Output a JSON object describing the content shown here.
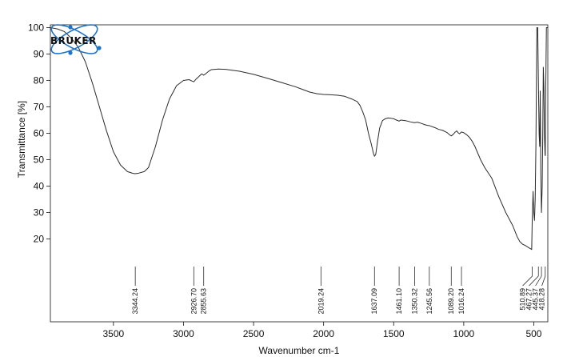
{
  "chart_data": {
    "type": "line",
    "xlabel": "Wavenumber cm-1",
    "ylabel": "Transmittance [%]",
    "xlim": [
      3950,
      400
    ],
    "ylim": [
      0,
      100
    ],
    "x_reversed": true,
    "x_ticks": [
      3500,
      3000,
      2500,
      2000,
      1500,
      1000,
      500
    ],
    "y_ticks": [
      20,
      30,
      40,
      50,
      60,
      70,
      80,
      90,
      100
    ],
    "grid": false,
    "logo": "BRUKER",
    "colors": {
      "line": "#2b2b2b",
      "logo_accent": "#1e73c8",
      "axis": "#111111"
    },
    "series": [
      {
        "x": [
          3950,
          3900,
          3850,
          3800,
          3750,
          3700,
          3650,
          3600,
          3550,
          3500,
          3450,
          3400,
          3360,
          3344.24,
          3320,
          3280,
          3250,
          3200,
          3150,
          3100,
          3050,
          3000,
          2960,
          2940,
          2926.7,
          2910,
          2880,
          2870,
          2855.63,
          2840,
          2820,
          2800,
          2750,
          2700,
          2600,
          2500,
          2400,
          2300,
          2200,
          2150,
          2100,
          2050,
          2019.24,
          2000,
          1950,
          1900,
          1850,
          1800,
          1760,
          1740,
          1720,
          1700,
          1680,
          1660,
          1645,
          1637.09,
          1628,
          1615,
          1600,
          1580,
          1560,
          1540,
          1520,
          1500,
          1480,
          1461.1,
          1450,
          1420,
          1400,
          1380,
          1360,
          1350.32,
          1330,
          1300,
          1280,
          1260,
          1245.56,
          1230,
          1200,
          1180,
          1150,
          1120,
          1100,
          1089.2,
          1075,
          1060,
          1050,
          1040,
          1030,
          1016.24,
          1000,
          980,
          960,
          940,
          920,
          900,
          880,
          850,
          800,
          750,
          700,
          650,
          620,
          600,
          580,
          560,
          545,
          530,
          520,
          515,
          510.89,
          505,
          500,
          495,
          490,
          485,
          478,
          472,
          467.27,
          462,
          458,
          454,
          450,
          445.37,
          440,
          436,
          432,
          428,
          424,
          420,
          418.28,
          415,
          410,
          405,
          400
        ],
        "y": [
          100,
          99.5,
          98.5,
          96,
          92.5,
          87,
          79,
          70,
          61,
          53,
          48,
          45.5,
          44.8,
          44.7,
          44.9,
          45.5,
          47,
          55,
          65,
          73,
          78,
          80,
          80.3,
          79.8,
          79.5,
          80.5,
          82,
          82.5,
          82,
          82.6,
          83.5,
          84.1,
          84.3,
          84.2,
          83.5,
          82.3,
          80.8,
          79.2,
          77.6,
          76.6,
          75.6,
          75,
          74.8,
          74.7,
          74.6,
          74.4,
          74,
          73,
          72,
          70.5,
          68,
          65,
          60,
          56,
          52.5,
          51.3,
          52,
          57,
          62,
          64.8,
          65.5,
          65.8,
          65.7,
          65.5,
          65,
          64.6,
          65,
          64.8,
          64.6,
          64.3,
          64.1,
          64,
          64.2,
          63.7,
          63.3,
          63,
          62.9,
          62.6,
          62,
          61.5,
          61.1,
          60.3,
          59.4,
          59,
          59.6,
          60.5,
          60.9,
          60.2,
          59.8,
          60.5,
          60.2,
          59.5,
          58.5,
          57,
          55,
          52.5,
          50,
          47,
          43,
          36,
          30,
          25,
          21,
          19,
          18,
          17.5,
          17,
          16.5,
          16.2,
          16,
          28,
          38,
          30,
          27,
          35,
          55,
          100,
          100,
          80,
          60,
          55,
          76,
          45,
          30,
          40,
          60,
          85,
          78,
          60,
          52,
          51.5,
          75,
          100,
          100,
          100
        ]
      }
    ],
    "peak_labels": [
      "3344.24",
      "2926.70",
      "2855.63",
      "2019.24",
      "1637.09",
      "1461.10",
      "1350.32",
      "1245.56",
      "1089.20",
      "1016.24",
      "510.89",
      "467.27",
      "445.37",
      "418.28"
    ],
    "peak_positions": [
      3344.24,
      2926.7,
      2855.63,
      2019.24,
      1637.09,
      1461.1,
      1350.32,
      1245.56,
      1089.2,
      1016.24,
      510.89,
      467.27,
      445.37,
      418.28
    ]
  }
}
